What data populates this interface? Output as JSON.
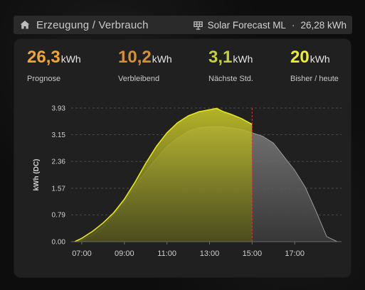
{
  "header": {
    "title": "Erzeugung / Verbrauch",
    "forecast_label": "Solar Forecast ML",
    "separator": "·",
    "forecast_total": "26,28 kWh"
  },
  "stats": [
    {
      "value": "26,3",
      "unit": "kWh",
      "label": "Prognose",
      "color": "#f0a630"
    },
    {
      "value": "10,2",
      "unit": "kWh",
      "label": "Verbleibend",
      "color": "#d7902f"
    },
    {
      "value": "3,1",
      "unit": "kWh",
      "label": "Nächste Std.",
      "color": "#c6cf3e"
    },
    {
      "value": "20",
      "unit": "kWh",
      "label": "Bisher / heute",
      "color": "#eeee30"
    }
  ],
  "chart_data": {
    "type": "area",
    "ylabel": "kWh (DC)",
    "ylim": [
      0,
      3.93
    ],
    "y_ticks": [
      "0.00",
      "0.79",
      "1.57",
      "2.36",
      "3.15",
      "3.93"
    ],
    "x_ticks": [
      "07:00",
      "09:00",
      "11:00",
      "13:00",
      "15:00",
      "17:00"
    ],
    "now": "15:00",
    "grid": true,
    "series": [
      {
        "color": "#6e6e6e",
        "x": [
          "06:40",
          "07:00",
          "07:30",
          "08:00",
          "08:30",
          "09:00",
          "09:30",
          "10:00",
          "10:30",
          "11:00",
          "11:30",
          "12:00",
          "12:30",
          "13:00",
          "13:30",
          "14:00",
          "14:30",
          "15:00",
          "15:30",
          "16:00",
          "16:30",
          "17:00",
          "17:30",
          "18:00",
          "18:30",
          "19:00"
        ],
        "values": [
          0.0,
          0.05,
          0.2,
          0.45,
          0.8,
          1.2,
          1.65,
          2.05,
          2.45,
          2.8,
          3.05,
          3.25,
          3.35,
          3.38,
          3.38,
          3.35,
          3.3,
          3.2,
          3.1,
          2.9,
          2.5,
          2.1,
          1.6,
          0.9,
          0.15,
          0.0
        ]
      },
      {
        "color": "#d6d81e",
        "x": [
          "06:40",
          "07:00",
          "07:30",
          "08:00",
          "08:30",
          "09:00",
          "09:30",
          "10:00",
          "10:30",
          "11:00",
          "11:30",
          "12:00",
          "12:30",
          "13:00",
          "13:20",
          "13:40",
          "14:00",
          "14:30",
          "15:00"
        ],
        "values": [
          0.0,
          0.1,
          0.3,
          0.55,
          0.85,
          1.25,
          1.75,
          2.3,
          2.8,
          3.2,
          3.5,
          3.7,
          3.82,
          3.88,
          3.92,
          3.82,
          3.75,
          3.62,
          3.45
        ]
      }
    ]
  }
}
